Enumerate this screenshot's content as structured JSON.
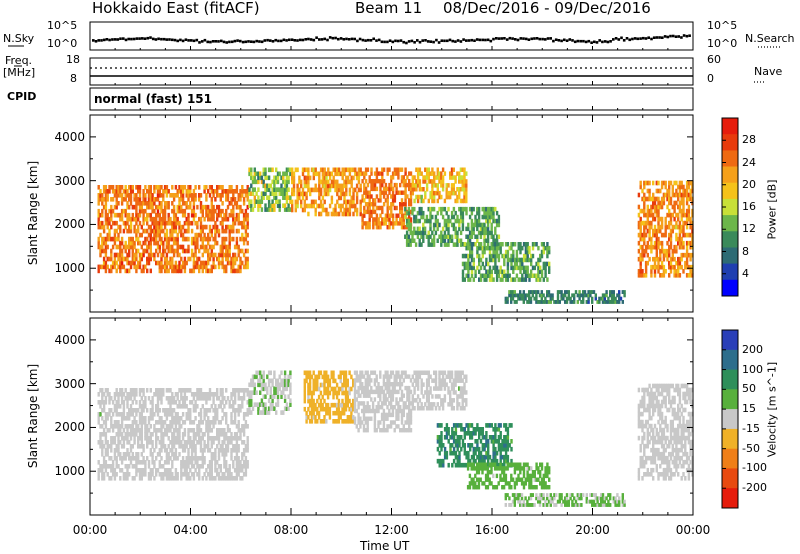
{
  "header": {
    "station": "Hokkaido East (fitACF)",
    "beam": "Beam 11",
    "dates": "08/Dec/2016 - 09/Dec/2016"
  },
  "noise_panel": {
    "left_label": "N.Sky",
    "right_label": "N.Search",
    "left_ticks": [
      "10^5",
      "10^0"
    ],
    "right_ticks": [
      "10^5",
      "10^0"
    ]
  },
  "freq_panel": {
    "left_label_1": "Freq.",
    "left_label_2": "[MHz]",
    "left_ticks": [
      "18",
      "8"
    ],
    "right_label": "Nave",
    "right_ticks": [
      "60",
      "0"
    ]
  },
  "cpid_panel": {
    "label": "CPID",
    "text": "normal (fast) 151"
  },
  "axes": {
    "ylabel": "Slant Range [km]",
    "xlabel": "Time UT",
    "yticks": [
      "4000",
      "3000",
      "2000",
      "1000"
    ],
    "xticks": [
      "00:00",
      "04:00",
      "08:00",
      "12:00",
      "16:00",
      "20:00",
      "00:00"
    ]
  },
  "colors": {
    "power": [
      "#0000ff",
      "#1f3fb0",
      "#2d6b74",
      "#3a8a5a",
      "#6cb64a",
      "#c8e038",
      "#f5c21a",
      "#f5a01a",
      "#ef6a12",
      "#e83a0c",
      "#e61c0c"
    ],
    "velocity": [
      "#2a3fb8",
      "#2d6e8c",
      "#2e8f5a",
      "#58b03c",
      "#c8c8c8",
      "#efb128",
      "#ef7f18",
      "#e84a10",
      "#e61c0c"
    ]
  },
  "chart_data": [
    {
      "type": "heatmap",
      "title": "Power",
      "ylabel": "Slant Range [km]",
      "xlabel": "",
      "xlim": [
        "00:00",
        "24:00"
      ],
      "ylim": [
        0,
        4500
      ],
      "colorbar": {
        "label": "Power [dB]",
        "ticks": [
          "4",
          "8",
          "12",
          "16",
          "20",
          "24",
          "28"
        ],
        "range": [
          0,
          32
        ]
      },
      "regions": [
        {
          "t0": 0.3,
          "t1": 6.3,
          "r0": 900,
          "r1": 2900,
          "value": 24,
          "spread": 7
        },
        {
          "t0": 6.3,
          "t1": 8.0,
          "r0": 2300,
          "r1": 3300,
          "value": 14,
          "spread": 9
        },
        {
          "t0": 8.0,
          "t1": 10.8,
          "r0": 2200,
          "r1": 3300,
          "value": 22,
          "spread": 7
        },
        {
          "t0": 10.8,
          "t1": 12.8,
          "r0": 1900,
          "r1": 3300,
          "value": 24,
          "spread": 6
        },
        {
          "t0": 12.8,
          "t1": 15.0,
          "r0": 2500,
          "r1": 3300,
          "value": 20,
          "spread": 8
        },
        {
          "t0": 12.5,
          "t1": 16.3,
          "r0": 1500,
          "r1": 2400,
          "value": 12,
          "spread": 6
        },
        {
          "t0": 14.8,
          "t1": 18.3,
          "r0": 700,
          "r1": 1600,
          "value": 12,
          "spread": 7
        },
        {
          "t0": 16.5,
          "t1": 21.3,
          "r0": 200,
          "r1": 500,
          "value": 9,
          "spread": 5
        },
        {
          "t0": 21.8,
          "t1": 24.0,
          "r0": 800,
          "r1": 3000,
          "value": 23,
          "spread": 7
        }
      ]
    },
    {
      "type": "heatmap",
      "title": "Velocity",
      "ylabel": "Slant Range [km]",
      "xlabel": "Time UT",
      "xlim": [
        "00:00",
        "24:00"
      ],
      "ylim": [
        0,
        4500
      ],
      "colorbar": {
        "label": "Velocity [m s^-1]",
        "ticks": [
          "200",
          "100",
          "50",
          "15",
          "-15",
          "-50",
          "-100",
          "-200"
        ],
        "range": [
          -250,
          250
        ]
      },
      "regions": [
        {
          "t0": 0.3,
          "t1": 6.3,
          "r0": 800,
          "r1": 2900,
          "value": 0,
          "spread": 30
        },
        {
          "t0": 6.3,
          "t1": 8.0,
          "r0": 2300,
          "r1": 3300,
          "value": 20,
          "spread": 40
        },
        {
          "t0": 8.5,
          "t1": 10.5,
          "r0": 2100,
          "r1": 3300,
          "value": -40,
          "spread": 25
        },
        {
          "t0": 10.5,
          "t1": 12.8,
          "r0": 1900,
          "r1": 3300,
          "value": 0,
          "spread": 25
        },
        {
          "t0": 12.8,
          "t1": 15.0,
          "r0": 2400,
          "r1": 3300,
          "value": 5,
          "spread": 30
        },
        {
          "t0": 13.8,
          "t1": 16.8,
          "r0": 1100,
          "r1": 2100,
          "value": 120,
          "spread": 60
        },
        {
          "t0": 15.0,
          "t1": 18.3,
          "r0": 600,
          "r1": 1200,
          "value": 45,
          "spread": 25
        },
        {
          "t0": 16.5,
          "t1": 21.3,
          "r0": 200,
          "r1": 500,
          "value": 30,
          "spread": 15
        },
        {
          "t0": 21.8,
          "t1": 24.0,
          "r0": 800,
          "r1": 3000,
          "value": 5,
          "spread": 25
        }
      ]
    }
  ]
}
